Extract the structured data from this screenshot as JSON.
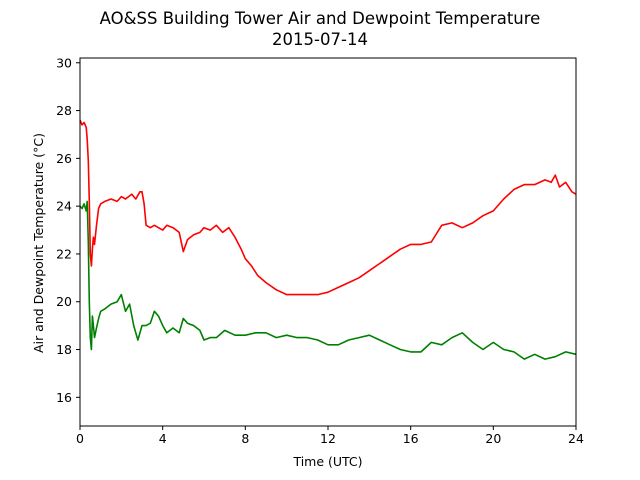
{
  "chart_data": {
    "type": "line",
    "title": "AO&SS Building Tower Air and Dewpoint Temperature",
    "subtitle": "2015-07-14",
    "xlabel": "Time (UTC)",
    "ylabel": "Air and Dewpoint Temperature (°C)",
    "xlim": [
      0,
      24
    ],
    "ylim": [
      14.8,
      30.2
    ],
    "xticks": [
      0,
      4,
      8,
      12,
      16,
      20,
      24
    ],
    "yticks": [
      16,
      18,
      20,
      22,
      24,
      26,
      28,
      30
    ],
    "grid": false,
    "legend": "none",
    "series": [
      {
        "color": "#ff0000",
        "x": [
          0,
          0.1,
          0.2,
          0.3,
          0.35,
          0.4,
          0.45,
          0.5,
          0.55,
          0.6,
          0.65,
          0.7,
          0.8,
          0.9,
          1.0,
          1.2,
          1.5,
          1.8,
          2.0,
          2.2,
          2.5,
          2.7,
          2.9,
          3.0,
          3.1,
          3.2,
          3.4,
          3.6,
          3.8,
          4.0,
          4.2,
          4.5,
          4.8,
          5.0,
          5.2,
          5.5,
          5.8,
          6.0,
          6.3,
          6.6,
          6.9,
          7.2,
          7.5,
          7.8,
          8.0,
          8.3,
          8.6,
          9.0,
          9.5,
          10.0,
          10.5,
          11.0,
          11.5,
          12.0,
          12.5,
          13.0,
          13.5,
          14.0,
          14.5,
          15.0,
          15.5,
          16.0,
          16.5,
          17.0,
          17.5,
          18.0,
          18.5,
          19.0,
          19.5,
          20.0,
          20.5,
          21.0,
          21.5,
          22.0,
          22.5,
          22.8,
          23.0,
          23.2,
          23.5,
          23.8,
          24.0
        ],
        "values": [
          27.6,
          27.4,
          27.5,
          27.3,
          26.8,
          25.9,
          24.2,
          22.0,
          21.5,
          22.2,
          22.7,
          22.4,
          23.2,
          23.9,
          24.1,
          24.2,
          24.3,
          24.2,
          24.4,
          24.3,
          24.5,
          24.3,
          24.6,
          24.6,
          24.1,
          23.2,
          23.1,
          23.2,
          23.1,
          23.0,
          23.2,
          23.1,
          22.9,
          22.1,
          22.6,
          22.8,
          22.9,
          23.1,
          23.0,
          23.2,
          22.9,
          23.1,
          22.7,
          22.2,
          21.8,
          21.5,
          21.1,
          20.8,
          20.5,
          20.3,
          20.3,
          20.3,
          20.3,
          20.4,
          20.6,
          20.8,
          21.0,
          21.3,
          21.6,
          21.9,
          22.2,
          22.4,
          22.4,
          22.5,
          23.2,
          23.3,
          23.1,
          23.3,
          23.6,
          23.8,
          24.3,
          24.7,
          24.9,
          24.9,
          25.1,
          25.0,
          25.3,
          24.8,
          25.0,
          24.6,
          24.5
        ]
      },
      {
        "color": "#008000",
        "x": [
          0,
          0.1,
          0.2,
          0.3,
          0.35,
          0.4,
          0.45,
          0.5,
          0.55,
          0.6,
          0.65,
          0.7,
          0.8,
          0.9,
          1.0,
          1.2,
          1.5,
          1.8,
          2.0,
          2.2,
          2.4,
          2.6,
          2.8,
          3.0,
          3.2,
          3.4,
          3.6,
          3.8,
          4.0,
          4.2,
          4.5,
          4.8,
          5.0,
          5.2,
          5.5,
          5.8,
          6.0,
          6.3,
          6.6,
          7.0,
          7.5,
          8.0,
          8.5,
          9.0,
          9.5,
          10.0,
          10.5,
          11.0,
          11.5,
          12.0,
          12.5,
          13.0,
          13.5,
          14.0,
          14.5,
          15.0,
          15.5,
          16.0,
          16.5,
          17.0,
          17.5,
          18.0,
          18.5,
          19.0,
          19.5,
          20.0,
          20.5,
          21.0,
          21.5,
          22.0,
          22.5,
          23.0,
          23.5,
          24.0
        ],
        "values": [
          24.0,
          23.9,
          24.1,
          23.8,
          24.2,
          22.5,
          20.0,
          18.5,
          18.0,
          19.4,
          19.0,
          18.5,
          18.9,
          19.3,
          19.6,
          19.7,
          19.9,
          20.0,
          20.3,
          19.6,
          19.9,
          19.0,
          18.4,
          19.0,
          19.0,
          19.1,
          19.6,
          19.4,
          19.0,
          18.7,
          18.9,
          18.7,
          19.3,
          19.1,
          19.0,
          18.8,
          18.4,
          18.5,
          18.5,
          18.8,
          18.6,
          18.6,
          18.7,
          18.7,
          18.5,
          18.6,
          18.5,
          18.5,
          18.4,
          18.2,
          18.2,
          18.4,
          18.5,
          18.6,
          18.4,
          18.2,
          18.0,
          17.9,
          17.9,
          18.3,
          18.2,
          18.5,
          18.7,
          18.3,
          18.0,
          18.3,
          18.0,
          17.9,
          17.6,
          17.8,
          17.6,
          17.7,
          17.9,
          17.8
        ]
      }
    ]
  }
}
